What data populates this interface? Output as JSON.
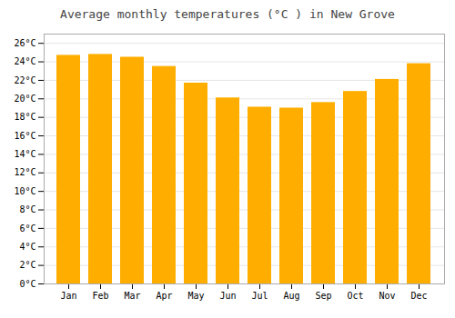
{
  "chart_data": {
    "type": "bar",
    "title": "Average monthly temperatures (°C ) in New Grove",
    "categories": [
      "Jan",
      "Feb",
      "Mar",
      "Apr",
      "May",
      "Jun",
      "Jul",
      "Aug",
      "Sep",
      "Oct",
      "Nov",
      "Dec"
    ],
    "values": [
      24.7,
      24.8,
      24.5,
      23.5,
      21.7,
      20.1,
      19.1,
      19.0,
      19.6,
      20.8,
      22.1,
      23.8
    ],
    "color": "#FFAE00",
    "ylim": [
      0,
      27
    ],
    "yticks": [
      {
        "value": 0,
        "label": "0°C"
      },
      {
        "value": 2,
        "label": "2°C"
      },
      {
        "value": 4,
        "label": "4°C"
      },
      {
        "value": 6,
        "label": "6°C"
      },
      {
        "value": 8,
        "label": "8°C"
      },
      {
        "value": 10,
        "label": "10°C"
      },
      {
        "value": 12,
        "label": "12°C"
      },
      {
        "value": 14,
        "label": "14°C"
      },
      {
        "value": 16,
        "label": "16°C"
      },
      {
        "value": 18,
        "label": "18°C"
      },
      {
        "value": 20,
        "label": "20°C"
      },
      {
        "value": 22,
        "label": "22°C"
      },
      {
        "value": 24,
        "label": "24°C"
      },
      {
        "value": 26,
        "label": "26°C"
      }
    ],
    "grid": true
  }
}
